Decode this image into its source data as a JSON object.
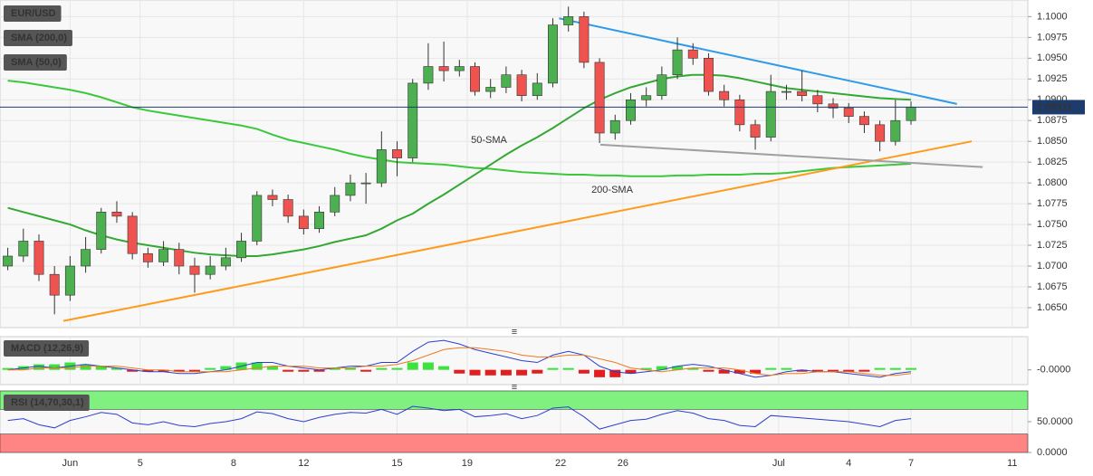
{
  "chart_data": [
    {
      "type": "candlestick",
      "title": "EUR/USD",
      "xlim": [
        -0.5,
        65.5
      ],
      "ylim": [
        1.0626,
        1.102
      ],
      "yticks": [
        {
          "value": 1.065,
          "label": "1.0650"
        },
        {
          "value": 1.0675,
          "label": "1.0675"
        },
        {
          "value": 1.07,
          "label": "1.0700"
        },
        {
          "value": 1.0725,
          "label": "1.0725"
        },
        {
          "value": 1.075,
          "label": "1.0750"
        },
        {
          "value": 1.0775,
          "label": "1.0775"
        },
        {
          "value": 1.08,
          "label": "1.0800"
        },
        {
          "value": 1.0825,
          "label": "1.0825"
        },
        {
          "value": 1.085,
          "label": "1.0850"
        },
        {
          "value": 1.0875,
          "label": "1.0875"
        },
        {
          "value": 1.09,
          "label": "1.0900"
        },
        {
          "value": 1.0925,
          "label": "1.0925"
        },
        {
          "value": 1.095,
          "label": "1.0950"
        },
        {
          "value": 1.0975,
          "label": "1.0975"
        },
        {
          "value": 1.1,
          "label": "1.1000"
        }
      ],
      "grid": true,
      "up_color": "#4caf50",
      "down_color": "#ef5350",
      "open": [
        1.07,
        1.0712,
        1.073,
        1.069,
        1.0665,
        1.07,
        1.072,
        1.0765,
        1.076,
        1.0715,
        1.0705,
        1.072,
        1.07,
        1.069,
        1.07,
        1.071,
        1.073,
        1.0785,
        1.078,
        1.076,
        1.0745,
        1.0765,
        1.0785,
        1.08,
        1.08,
        1.084,
        1.083,
        1.092,
        1.094,
        1.0935,
        1.094,
        1.091,
        1.0915,
        1.093,
        1.0905,
        1.092,
        1.099,
        1.1,
        1.0945,
        1.086,
        1.0875,
        1.09,
        1.0905,
        1.093,
        1.096,
        1.095,
        1.091,
        1.09,
        1.087,
        1.0855,
        1.091,
        1.091,
        1.0905,
        1.0895,
        1.089,
        1.088,
        1.087,
        1.085,
        1.0875
      ],
      "high": [
        1.0722,
        1.0745,
        1.0738,
        1.07,
        1.0712,
        1.0735,
        1.077,
        1.0778,
        1.0765,
        1.0722,
        1.073,
        1.0728,
        1.071,
        1.0712,
        1.0722,
        1.074,
        1.079,
        1.0792,
        1.0786,
        1.0768,
        1.0772,
        1.0795,
        1.081,
        1.0812,
        1.0862,
        1.085,
        1.0925,
        1.0968,
        1.097,
        1.0948,
        1.0945,
        1.0925,
        1.094,
        1.0936,
        1.0932,
        1.0998,
        1.1012,
        1.1006,
        1.095,
        1.0882,
        1.0908,
        1.0915,
        1.094,
        1.0975,
        1.0968,
        1.0956,
        1.0918,
        1.0906,
        1.0876,
        1.093,
        1.0918,
        1.0935,
        1.0912,
        1.0902,
        1.0896,
        1.0886,
        1.0875,
        1.09,
        1.0898
      ],
      "low": [
        1.0695,
        1.0705,
        1.0682,
        1.0642,
        1.0658,
        1.0692,
        1.0715,
        1.0752,
        1.0708,
        1.0698,
        1.07,
        1.069,
        1.0668,
        1.0684,
        1.0695,
        1.0705,
        1.0725,
        1.0772,
        1.0752,
        1.0738,
        1.074,
        1.076,
        1.0778,
        1.0775,
        1.0795,
        1.0808,
        1.0825,
        1.0912,
        1.0922,
        1.0928,
        1.0905,
        1.0902,
        1.0908,
        1.0898,
        1.09,
        1.0915,
        1.0982,
        1.0938,
        1.0848,
        1.0852,
        1.087,
        1.0892,
        1.09,
        1.0925,
        1.0942,
        1.0905,
        1.0892,
        1.0862,
        1.084,
        1.085,
        1.09,
        1.0898,
        1.0885,
        1.0878,
        1.0872,
        1.086,
        1.0838,
        1.0845,
        1.087
      ],
      "close": [
        1.0712,
        1.073,
        1.069,
        1.0665,
        1.07,
        1.072,
        1.0765,
        1.076,
        1.0715,
        1.0705,
        1.072,
        1.07,
        1.069,
        1.07,
        1.071,
        1.073,
        1.0785,
        1.078,
        1.076,
        1.0745,
        1.0765,
        1.0785,
        1.08,
        1.08,
        1.084,
        1.083,
        1.092,
        1.094,
        1.0935,
        1.094,
        1.091,
        1.0915,
        1.093,
        1.0905,
        1.092,
        1.099,
        1.1,
        1.0945,
        1.086,
        1.0875,
        1.09,
        1.0905,
        1.093,
        1.096,
        1.095,
        1.091,
        1.09,
        1.087,
        1.0855,
        1.091,
        1.091,
        1.0905,
        1.0895,
        1.089,
        1.088,
        1.087,
        1.085,
        1.0875,
        1.0891
      ],
      "series": [
        {
          "name": "SMA (200,0)",
          "color": "#3bc83b",
          "values": [
            1.0923,
            1.0921,
            1.0918,
            1.0915,
            1.0912,
            1.0908,
            1.0903,
            1.0897,
            1.0891,
            1.0887,
            1.0884,
            1.0881,
            1.0878,
            1.0875,
            1.0872,
            1.0869,
            1.0865,
            1.0858,
            1.0852,
            1.0848,
            1.0844,
            1.084,
            1.0835,
            1.0831,
            1.0828,
            1.0825,
            1.0824,
            1.0823,
            1.0822,
            1.082,
            1.0818,
            1.0817,
            1.0815,
            1.0813,
            1.0812,
            1.0811,
            1.081,
            1.081,
            1.0809,
            1.0809,
            1.0808,
            1.0808,
            1.0808,
            1.0809,
            1.0809,
            1.081,
            1.081,
            1.081,
            1.0811,
            1.0811,
            1.0812,
            1.0814,
            1.0816,
            1.0818,
            1.0819,
            1.082,
            1.0821,
            1.0822,
            1.0823
          ]
        },
        {
          "name": "SMA (50,0)",
          "color": "#33a833",
          "values": [
            1.077,
            1.0765,
            1.076,
            1.0755,
            1.075,
            1.0743,
            1.0737,
            1.0732,
            1.0728,
            1.0725,
            1.0722,
            1.0719,
            1.0716,
            1.0714,
            1.0713,
            1.0712,
            1.0712,
            1.0714,
            1.0717,
            1.072,
            1.0724,
            1.0729,
            1.0733,
            1.0737,
            1.0745,
            1.0755,
            1.0763,
            1.0775,
            1.0786,
            1.0798,
            1.081,
            1.0822,
            1.0834,
            1.0845,
            1.0855,
            1.0866,
            1.0878,
            1.089,
            1.09,
            1.0908,
            1.0915,
            1.092,
            1.0925,
            1.0928,
            1.093,
            1.093,
            1.0929,
            1.0926,
            1.0922,
            1.0918,
            1.0914,
            1.0912,
            1.091,
            1.0908,
            1.0906,
            1.0904,
            1.0902,
            1.0901,
            1.09
          ]
        }
      ],
      "trendlines": [
        {
          "color": "#2f9be8",
          "x": [
            35.4,
            60.95
          ],
          "y": [
            1.0998,
            1.0895
          ]
        },
        {
          "color": "#ff9a1a",
          "x": [
            3.57,
            61.9
          ],
          "y": [
            1.0634,
            1.085
          ]
        },
        {
          "color": "#a0a0a0",
          "x": [
            38.05,
            62.6
          ],
          "y": [
            1.0846,
            1.0819
          ]
        }
      ],
      "annotations": [
        "50-SMA",
        "200-SMA"
      ],
      "last_price": 1.08911,
      "last_price_color": "#1d3c6e"
    },
    {
      "type": "macd",
      "title": "MACD (12,26,9)",
      "xlim": [
        -0.5,
        65.5
      ],
      "ylim": [
        -0.0008,
        0.0018
      ],
      "yticks": [
        {
          "value": 0,
          "label": "-0.0000"
        }
      ],
      "pos_color": "#3ee23e",
      "neg_color": "#e41e1e",
      "histogram": [
        0.0001,
        0.0002,
        0.0003,
        0.0003,
        0.0004,
        0.0003,
        0.0002,
        0.0001,
        -0.0001,
        -0.0001,
        -0.0001,
        -0.0001,
        -0.0001,
        0.0001,
        0.0002,
        0.0004,
        0.0004,
        0.0002,
        -0.0001,
        -0.0001,
        -0.0001,
        0.0001,
        0.0001,
        -0.0001,
        0.0001,
        0.0001,
        0.0004,
        0.0004,
        0.0002,
        -0.0002,
        -0.0003,
        -0.0003,
        -0.0003,
        -0.0003,
        -0.0002,
        0.0001,
        0.0001,
        -0.0002,
        -0.0004,
        -0.0004,
        -0.0002,
        0.0001,
        0.0002,
        0.0002,
        0.0001,
        -0.0001,
        -0.0002,
        -0.0002,
        -0.0002,
        0.0001,
        0.0001,
        -0.0001,
        -0.0001,
        -0.0001,
        -0.0001,
        -0.0001,
        0.0001,
        0.0001,
        0.0001
      ],
      "lines": [
        {
          "color": "#2a3fd0",
          "values": [
            0.0,
            0.0001,
            0.0002,
            0.0001,
            0.0002,
            0.0003,
            0.0002,
            0.0001,
            0.0,
            -0.0001,
            -0.0001,
            -0.0002,
            -0.0002,
            -0.0001,
            0.0,
            0.0002,
            0.0004,
            0.0004,
            0.0002,
            0.0001,
            0.0,
            0.0001,
            0.0002,
            0.0002,
            0.0004,
            0.0004,
            0.001,
            0.0015,
            0.0016,
            0.0014,
            0.0011,
            0.0009,
            0.0007,
            0.0005,
            0.0004,
            0.0008,
            0.001,
            0.0008,
            0.0002,
            -0.0001,
            -0.0002,
            -0.0001,
            0.0,
            0.0002,
            0.0003,
            0.0002,
            0.0,
            -0.0002,
            -0.0004,
            -0.0003,
            -0.0001,
            0.0,
            -0.0001,
            -0.0001,
            -0.0002,
            -0.0003,
            -0.0004,
            -0.0002,
            -0.0001
          ]
        },
        {
          "color": "#f07a1a",
          "values": [
            0.0,
            0.0,
            0.0001,
            0.0001,
            0.0001,
            0.0002,
            0.0002,
            0.0002,
            0.0001,
            0.0,
            0.0,
            -0.0001,
            -0.0001,
            -0.0001,
            -0.0001,
            0.0,
            0.0001,
            0.0002,
            0.0002,
            0.0002,
            0.0001,
            0.0001,
            0.0001,
            0.0002,
            0.0002,
            0.0003,
            0.0005,
            0.0008,
            0.0011,
            0.0012,
            0.0012,
            0.0011,
            0.001,
            0.0008,
            0.0007,
            0.0007,
            0.0008,
            0.0008,
            0.0006,
            0.0004,
            0.0001,
            0.0,
            -0.0001,
            0.0,
            0.0001,
            0.0001,
            0.0001,
            0.0,
            -0.0002,
            -0.0003,
            -0.0002,
            -0.0002,
            -0.0001,
            -0.0001,
            -0.0001,
            -0.0002,
            -0.0003,
            -0.0003,
            -0.0002
          ]
        }
      ]
    },
    {
      "type": "rsi",
      "title": "RSI (14,70,30,1)",
      "xlim": [
        -0.5,
        65.5
      ],
      "ylim": [
        0,
        100
      ],
      "yticks": [
        {
          "value": 50,
          "label": "50.0000"
        },
        {
          "value": 0,
          "label": "0.0000"
        }
      ],
      "xticks": [
        {
          "value": 4,
          "label": "Jun"
        },
        {
          "value": 8.5,
          "label": "5"
        },
        {
          "value": 14.5,
          "label": "8"
        },
        {
          "value": 19,
          "label": "12"
        },
        {
          "value": 25,
          "label": "15"
        },
        {
          "value": 29.5,
          "label": "19"
        },
        {
          "value": 35.5,
          "label": "22"
        },
        {
          "value": 39.5,
          "label": "26"
        },
        {
          "value": 49.5,
          "label": "Jul"
        },
        {
          "value": 54,
          "label": "4"
        },
        {
          "value": 58,
          "label": "7"
        },
        {
          "value": 64.5,
          "label": "11"
        }
      ],
      "color": "#2a3fd0",
      "bands": [
        {
          "range": [
            70,
            100
          ],
          "color": "#80f080"
        },
        {
          "range": [
            0,
            30
          ],
          "color": "#ff8585"
        }
      ],
      "values": [
        52,
        55,
        45,
        40,
        52,
        58,
        65,
        62,
        48,
        45,
        50,
        44,
        42,
        47,
        50,
        55,
        66,
        63,
        55,
        50,
        57,
        62,
        65,
        64,
        70,
        62,
        75,
        72,
        68,
        70,
        58,
        60,
        63,
        55,
        60,
        72,
        74,
        58,
        38,
        45,
        52,
        54,
        62,
        68,
        64,
        55,
        52,
        44,
        42,
        60,
        58,
        56,
        54,
        52,
        50,
        46,
        42,
        52,
        55
      ]
    }
  ]
}
